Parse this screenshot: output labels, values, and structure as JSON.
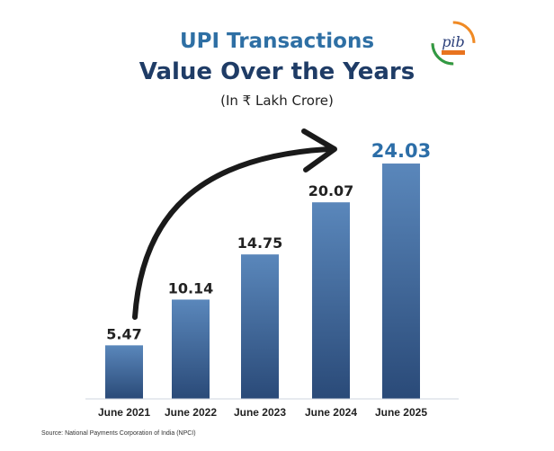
{
  "header": {
    "title_line1": "UPI Transactions",
    "title_line2": "Value Over the Years",
    "subtitle": "(In ₹ Lakh Crore)"
  },
  "logo": {
    "icon": "pib-logo",
    "text": "pib"
  },
  "source": "Source: National Payments Corporation of India (NPCI)",
  "colors": {
    "bar_top": "#5a87bb",
    "bar_bottom": "#2a4a78",
    "title_blue": "#2e6fa4",
    "title_navy": "#1f3c66",
    "highlight_value": "#2c6ea8"
  },
  "chart_data": {
    "type": "bar",
    "categories": [
      "June 2021",
      "June 2022",
      "June 2023",
      "June 2024",
      "June 2025"
    ],
    "values": [
      5.47,
      10.14,
      14.75,
      20.07,
      24.03
    ],
    "value_labels": [
      "5.47",
      "10.14",
      "14.75",
      "20.07",
      "24.03"
    ],
    "title": "UPI Transactions Value Over the Years",
    "subtitle": "(In ₹ Lakh Crore)",
    "xlabel": "",
    "ylabel": "",
    "ylim": [
      0,
      25.5
    ],
    "grid": false,
    "legend": "none",
    "annotations": [
      "curved arrow indicating upward growth"
    ]
  }
}
